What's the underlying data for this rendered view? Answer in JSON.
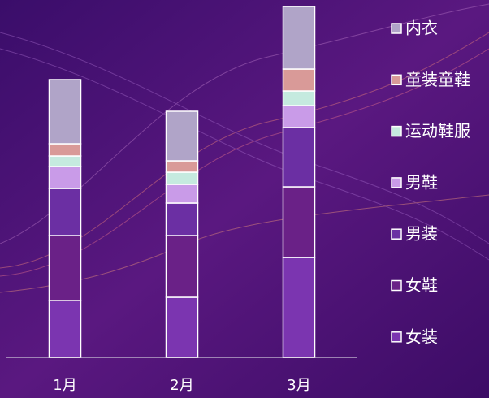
{
  "chart_data": {
    "type": "stacked_bar",
    "categories": [
      "1月",
      "2月",
      "3月"
    ],
    "series": [
      {
        "name": "女装",
        "color": "#7b35b0",
        "values": [
          70,
          74,
          123
        ]
      },
      {
        "name": "女鞋",
        "color": "#6a2187",
        "values": [
          80,
          76,
          87
        ]
      },
      {
        "name": "男装",
        "color": "#6b2fa3",
        "values": [
          58,
          40,
          73
        ]
      },
      {
        "name": "男鞋",
        "color": "#c99be8",
        "values": [
          27,
          23,
          27
        ]
      },
      {
        "name": "运动鞋服",
        "color": "#c5eadf",
        "values": [
          13,
          15,
          18
        ]
      },
      {
        "name": "童装童鞋",
        "color": "#d99a98",
        "values": [
          15,
          14,
          27
        ]
      },
      {
        "name": "内衣",
        "color": "#b0a4c8",
        "values": [
          79,
          61,
          77
        ]
      }
    ]
  }
}
